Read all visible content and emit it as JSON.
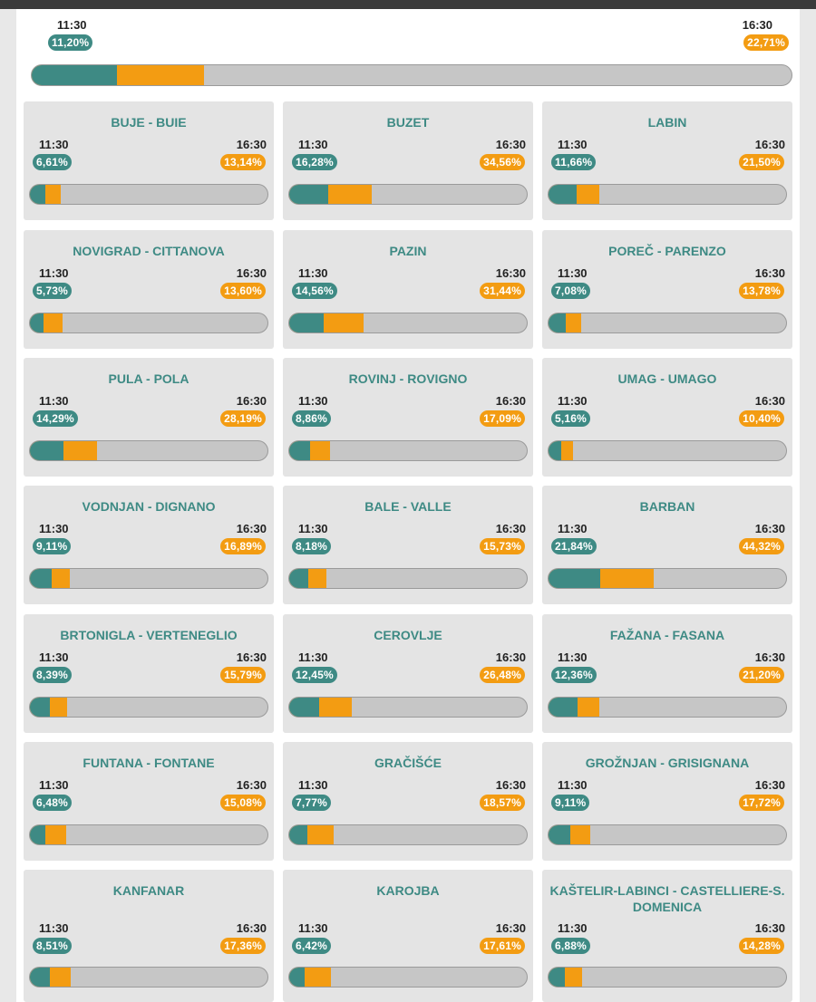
{
  "summary": {
    "time_1": "11:30",
    "pct_1": "11,20%",
    "value_1": 11.2,
    "time_2": "16:30",
    "pct_2": "22,71%",
    "value_2": 22.71
  },
  "colors": {
    "teal": "#3e8a84",
    "orange": "#f39c12",
    "bar_bg": "#c6c6c6"
  },
  "municipalities": [
    {
      "name": "BUJE - BUIE",
      "time_1": "11:30",
      "pct_1": "6,61%",
      "value_1": 6.61,
      "time_2": "16:30",
      "pct_2": "13,14%",
      "value_2": 13.14
    },
    {
      "name": "BUZET",
      "time_1": "11:30",
      "pct_1": "16,28%",
      "value_1": 16.28,
      "time_2": "16:30",
      "pct_2": "34,56%",
      "value_2": 34.56
    },
    {
      "name": "LABIN",
      "time_1": "11:30",
      "pct_1": "11,66%",
      "value_1": 11.66,
      "time_2": "16:30",
      "pct_2": "21,50%",
      "value_2": 21.5
    },
    {
      "name": "NOVIGRAD - CITTANOVA",
      "time_1": "11:30",
      "pct_1": "5,73%",
      "value_1": 5.73,
      "time_2": "16:30",
      "pct_2": "13,60%",
      "value_2": 13.6
    },
    {
      "name": "PAZIN",
      "time_1": "11:30",
      "pct_1": "14,56%",
      "value_1": 14.56,
      "time_2": "16:30",
      "pct_2": "31,44%",
      "value_2": 31.44
    },
    {
      "name": "POREČ - PARENZO",
      "time_1": "11:30",
      "pct_1": "7,08%",
      "value_1": 7.08,
      "time_2": "16:30",
      "pct_2": "13,78%",
      "value_2": 13.78
    },
    {
      "name": "PULA - POLA",
      "time_1": "11:30",
      "pct_1": "14,29%",
      "value_1": 14.29,
      "time_2": "16:30",
      "pct_2": "28,19%",
      "value_2": 28.19
    },
    {
      "name": "ROVINJ - ROVIGNO",
      "time_1": "11:30",
      "pct_1": "8,86%",
      "value_1": 8.86,
      "time_2": "16:30",
      "pct_2": "17,09%",
      "value_2": 17.09
    },
    {
      "name": "UMAG - UMAGO",
      "time_1": "11:30",
      "pct_1": "5,16%",
      "value_1": 5.16,
      "time_2": "16:30",
      "pct_2": "10,40%",
      "value_2": 10.4
    },
    {
      "name": "VODNJAN - DIGNANO",
      "time_1": "11:30",
      "pct_1": "9,11%",
      "value_1": 9.11,
      "time_2": "16:30",
      "pct_2": "16,89%",
      "value_2": 16.89
    },
    {
      "name": "BALE - VALLE",
      "time_1": "11:30",
      "pct_1": "8,18%",
      "value_1": 8.18,
      "time_2": "16:30",
      "pct_2": "15,73%",
      "value_2": 15.73
    },
    {
      "name": "BARBAN",
      "time_1": "11:30",
      "pct_1": "21,84%",
      "value_1": 21.84,
      "time_2": "16:30",
      "pct_2": "44,32%",
      "value_2": 44.32
    },
    {
      "name": "BRTONIGLA - VERTENEGLIO",
      "time_1": "11:30",
      "pct_1": "8,39%",
      "value_1": 8.39,
      "time_2": "16:30",
      "pct_2": "15,79%",
      "value_2": 15.79
    },
    {
      "name": "CEROVLJE",
      "time_1": "11:30",
      "pct_1": "12,45%",
      "value_1": 12.45,
      "time_2": "16:30",
      "pct_2": "26,48%",
      "value_2": 26.48
    },
    {
      "name": "FAŽANA - FASANA",
      "time_1": "11:30",
      "pct_1": "12,36%",
      "value_1": 12.36,
      "time_2": "16:30",
      "pct_2": "21,20%",
      "value_2": 21.2
    },
    {
      "name": "FUNTANA - FONTANE",
      "time_1": "11:30",
      "pct_1": "6,48%",
      "value_1": 6.48,
      "time_2": "16:30",
      "pct_2": "15,08%",
      "value_2": 15.08
    },
    {
      "name": "GRAČIŠĆE",
      "time_1": "11:30",
      "pct_1": "7,77%",
      "value_1": 7.77,
      "time_2": "16:30",
      "pct_2": "18,57%",
      "value_2": 18.57
    },
    {
      "name": "GROŽNJAN - GRISIGNANA",
      "time_1": "11:30",
      "pct_1": "9,11%",
      "value_1": 9.11,
      "time_2": "16:30",
      "pct_2": "17,72%",
      "value_2": 17.72
    },
    {
      "name": "KANFANAR",
      "time_1": "11:30",
      "pct_1": "8,51%",
      "value_1": 8.51,
      "time_2": "16:30",
      "pct_2": "17,36%",
      "value_2": 17.36
    },
    {
      "name": "KAROJBA",
      "time_1": "11:30",
      "pct_1": "6,42%",
      "value_1": 6.42,
      "time_2": "16:30",
      "pct_2": "17,61%",
      "value_2": 17.61
    },
    {
      "name": "KAŠTELIR-LABINCI - CASTELLIERE-S. DOMENICA",
      "time_1": "11:30",
      "pct_1": "6,88%",
      "value_1": 6.88,
      "time_2": "16:30",
      "pct_2": "14,28%",
      "value_2": 14.28
    }
  ]
}
